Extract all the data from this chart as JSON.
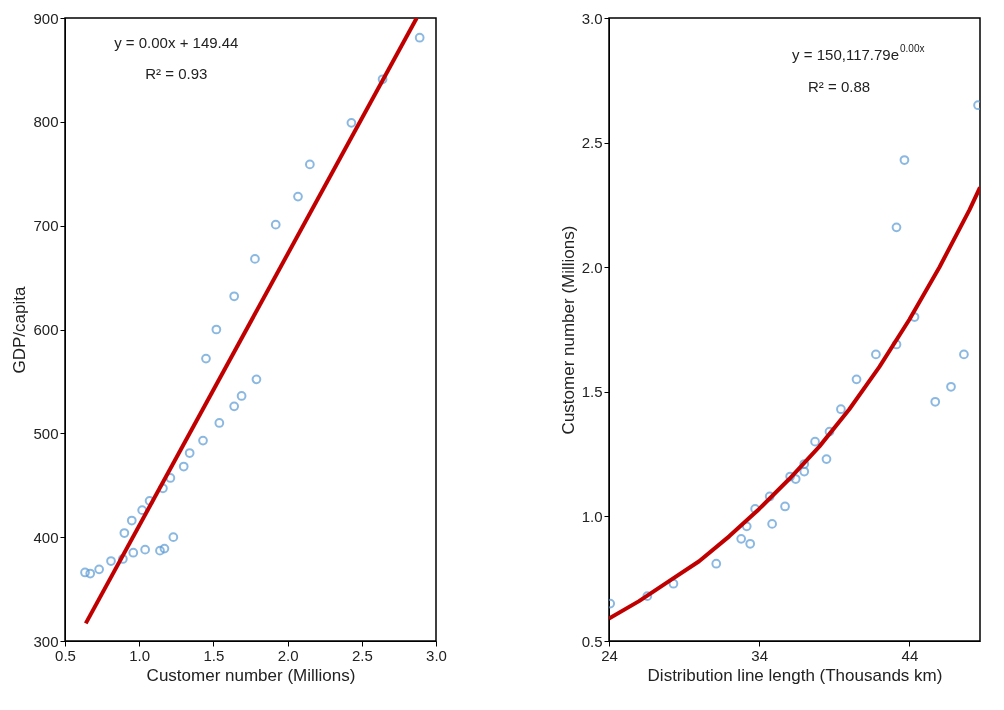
{
  "chart_data": [
    {
      "type": "scatter",
      "xlabel": "Customer number (Millions)",
      "ylabel": "GDP/capita",
      "xlim": [
        0.5,
        3.0
      ],
      "xticks": [
        {
          "value": 0.5,
          "label": "0.5"
        },
        {
          "value": 1.0,
          "label": "1.0"
        },
        {
          "value": 1.5,
          "label": "1.5"
        },
        {
          "value": 2.0,
          "label": "2.0"
        },
        {
          "value": 2.5,
          "label": "2.5"
        },
        {
          "value": 3.0,
          "label": "3.0"
        }
      ],
      "ylim": [
        300,
        900
      ],
      "yticks": [
        300,
        400,
        500,
        600,
        700,
        800,
        900
      ],
      "grid": false,
      "annotations": [
        "y = 0.00x + 149.44",
        "R² = 0.93"
      ],
      "series": [
        {
          "marker": "circle",
          "color": "#5b9bd5",
          "x": [
            0.635,
            0.67,
            0.73,
            0.81,
            0.89,
            0.9,
            0.95,
            0.96,
            1.02,
            1.04,
            1.07,
            1.14,
            1.17,
            1.16,
            1.21,
            1.23,
            1.3,
            1.34,
            1.43,
            1.45,
            1.54,
            1.64,
            1.69,
            1.79,
            1.52,
            1.64,
            1.78,
            1.92,
            2.07,
            2.15,
            2.43,
            2.64,
            2.89
          ],
          "values": [
            366,
            365,
            369,
            377,
            379,
            404,
            416,
            385,
            426,
            388,
            435,
            387,
            389,
            447,
            457,
            400,
            468,
            481,
            493,
            572,
            510,
            526,
            536,
            552,
            600,
            632,
            668,
            701,
            728,
            759,
            799,
            841,
            881
          ]
        },
        {
          "type": "line",
          "color": "#c00000",
          "line_style": "solid",
          "x": [
            0.64,
            2.87
          ],
          "values": [
            317,
            900
          ]
        }
      ]
    },
    {
      "type": "scatter",
      "xlabel": "Distribution line length (Thousands km)",
      "ylabel": "Customer number (Millions)",
      "xlim": [
        24,
        48.7
      ],
      "xticks": [
        24,
        34,
        44
      ],
      "ylim": [
        0.5,
        3.0
      ],
      "yticks": [
        {
          "value": 0.5,
          "label": "0.5"
        },
        {
          "value": 1.0,
          "label": "1.0"
        },
        {
          "value": 1.5,
          "label": "1.5"
        },
        {
          "value": 2.0,
          "label": "2.0"
        },
        {
          "value": 2.5,
          "label": "2.5"
        },
        {
          "value": 3.0,
          "label": "3.0"
        }
      ],
      "grid": false,
      "annotations": [
        "y = 150,117.79e$^{0.00x}$",
        "R² = 0.88"
      ],
      "series": [
        {
          "marker": "circle",
          "color": "#5b9bd5",
          "x": [
            24.08,
            26.55,
            28.29,
            31.14,
            32.8,
            33.17,
            33.4,
            33.73,
            34.7,
            34.86,
            35.72,
            36.06,
            36.43,
            37.0,
            37.0,
            37.72,
            38.48,
            38.68,
            39.44,
            40.48,
            41.77,
            43.14,
            44.34,
            45.72,
            46.77,
            47.63,
            43.14,
            43.67,
            48.57
          ],
          "values": [
            0.65,
            0.68,
            0.73,
            0.81,
            0.91,
            0.96,
            0.89,
            1.03,
            1.08,
            0.97,
            1.04,
            1.16,
            1.15,
            1.21,
            1.18,
            1.3,
            1.23,
            1.34,
            1.43,
            1.55,
            1.65,
            1.69,
            1.8,
            1.46,
            1.52,
            1.65,
            2.16,
            2.43,
            2.65
          ]
        },
        {
          "type": "line",
          "color": "#c00000",
          "line_style": "solid",
          "x": [
            24,
            26,
            28,
            30,
            32,
            34,
            36,
            38,
            40,
            42,
            44,
            46,
            48,
            48.7
          ],
          "values": [
            0.59,
            0.66,
            0.74,
            0.82,
            0.92,
            1.03,
            1.15,
            1.28,
            1.43,
            1.6,
            1.79,
            2.0,
            2.23,
            2.32
          ]
        }
      ]
    }
  ]
}
